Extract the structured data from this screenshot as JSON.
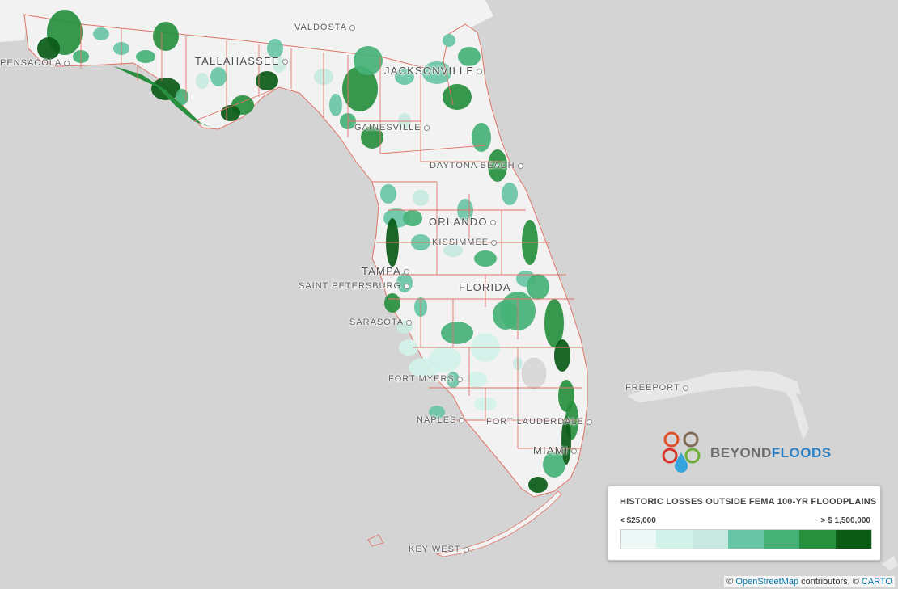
{
  "cities": [
    {
      "name": "VALDOSTA",
      "size": "small"
    },
    {
      "name": "PENSACOLA",
      "size": "small"
    },
    {
      "name": "TALLAHASSEE",
      "size": "big"
    },
    {
      "name": "JACKSONVILLE",
      "size": "big"
    },
    {
      "name": "GAINESVILLE",
      "size": "small"
    },
    {
      "name": "DAYTONA BEACH",
      "size": "small"
    },
    {
      "name": "ORLANDO",
      "size": "big"
    },
    {
      "name": "KISSIMMEE",
      "size": "small"
    },
    {
      "name": "TAMPA",
      "size": "big"
    },
    {
      "name": "SAINT PETERSBURG",
      "size": "small"
    },
    {
      "name": "FLORIDA",
      "size": "big"
    },
    {
      "name": "SARASOTA",
      "size": "small"
    },
    {
      "name": "FORT MYERS",
      "size": "small"
    },
    {
      "name": "NAPLES",
      "size": "small"
    },
    {
      "name": "FORT LAUDERDALE",
      "size": "small"
    },
    {
      "name": "MIAMI",
      "size": "big"
    },
    {
      "name": "KEY WEST",
      "size": "small"
    },
    {
      "name": "FREEPORT",
      "size": "small"
    }
  ],
  "logo": {
    "part1": "BEYOND",
    "part2": "FLOODS"
  },
  "legend": {
    "title": "HISTORIC LOSSES OUTSIDE FEMA 100-YR FLOODPLAINS",
    "min_label": "< $25,000",
    "max_label": "> $ 1,500,000",
    "colors": [
      "#eef8f6",
      "#d2f2ea",
      "#c8e9e1",
      "#69c4a5",
      "#47b277",
      "#278f3e",
      "#0a5a16"
    ]
  },
  "attribution": {
    "prefix": "© ",
    "osm": "OpenStreetMap",
    "middle": " contributors, © ",
    "carto": "CARTO"
  },
  "colors": {
    "water": "#d4d4d4",
    "land": "#f2f2f2",
    "boundary": "#e07468"
  }
}
